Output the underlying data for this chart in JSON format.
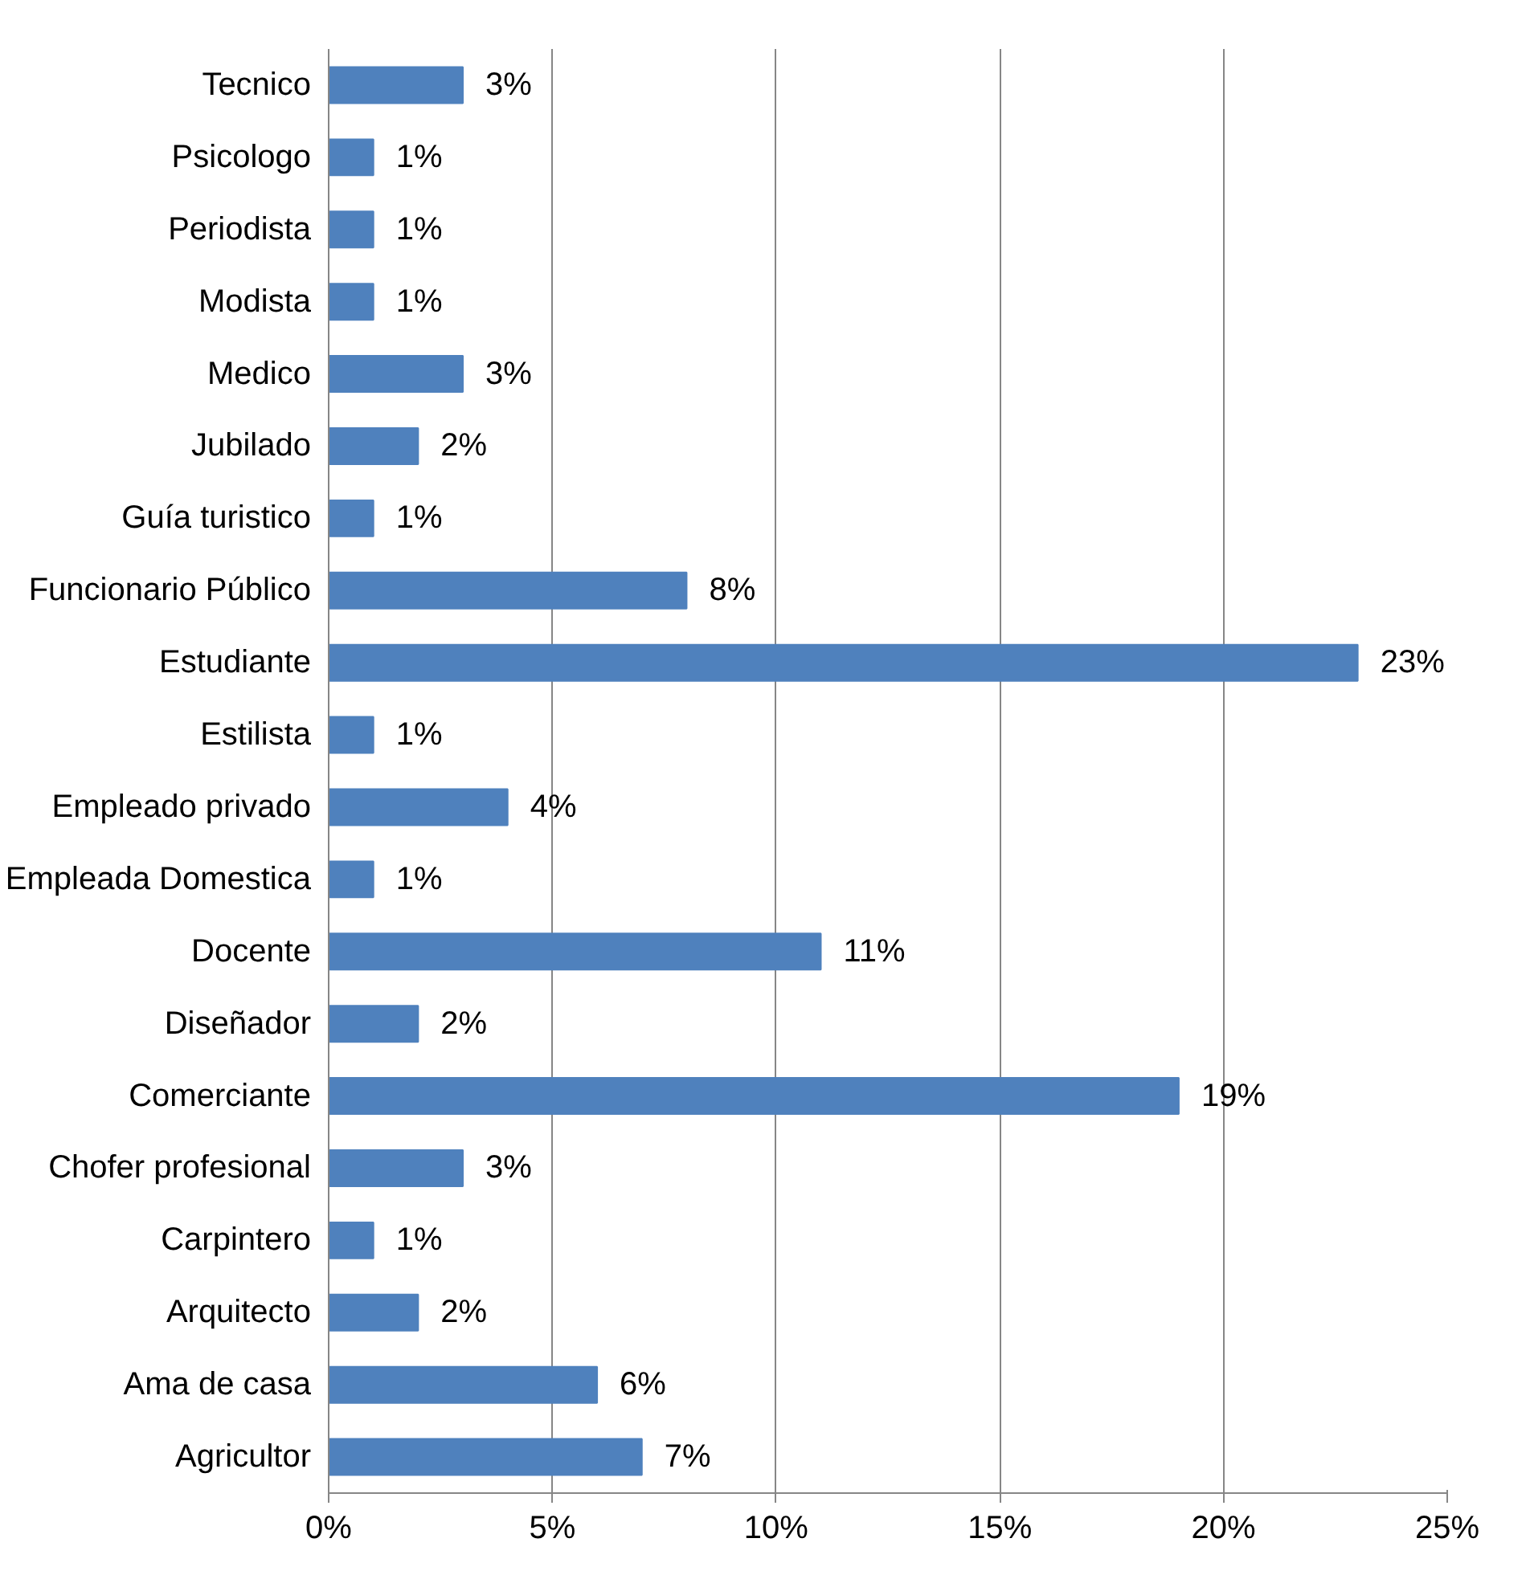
{
  "chart_data": {
    "type": "bar",
    "orientation": "horizontal",
    "categories": [
      "Tecnico",
      "Psicologo",
      "Periodista",
      "Modista",
      "Medico",
      "Jubilado",
      "Guía turistico",
      "Funcionario Público",
      "Estudiante",
      "Estilista",
      "Empleado privado",
      "Empleada Domestica",
      "Docente",
      "Diseñador",
      "Comerciante",
      "Chofer profesional",
      "Carpintero",
      "Arquitecto",
      "Ama de casa",
      "Agricultor"
    ],
    "values": [
      3,
      1,
      1,
      1,
      3,
      2,
      1,
      8,
      23,
      1,
      4,
      1,
      11,
      2,
      19,
      3,
      1,
      2,
      6,
      7
    ],
    "value_labels": [
      "3%",
      "1%",
      "1%",
      "1%",
      "3%",
      "2%",
      "1%",
      "8%",
      "23%",
      "1%",
      "4%",
      "1%",
      "11%",
      "2%",
      "19%",
      "3%",
      "1%",
      "2%",
      "6%",
      "7%"
    ],
    "color": "#4f81bd",
    "xlim": [
      0,
      25
    ],
    "xticks": [
      {
        "value": 0,
        "label": "0%"
      },
      {
        "value": 5,
        "label": "5%"
      },
      {
        "value": 10,
        "label": "10%"
      },
      {
        "value": 15,
        "label": "15%"
      },
      {
        "value": 20,
        "label": "20%"
      },
      {
        "value": 25,
        "label": "25%"
      }
    ],
    "grid": "x"
  }
}
